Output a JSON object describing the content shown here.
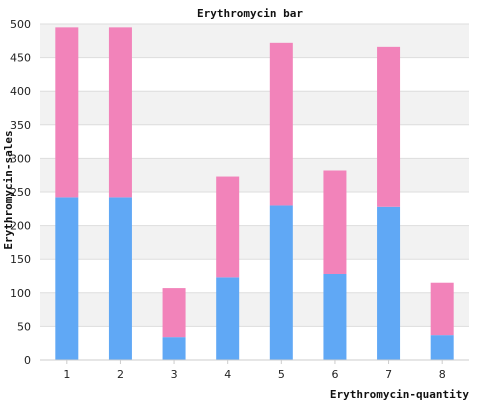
{
  "chart_data": {
    "type": "bar",
    "stacked": true,
    "title": "Erythromycin bar",
    "xlabel": "Erythromycin-quantity",
    "ylabel": "Erythromycin-sales",
    "categories": [
      "1",
      "2",
      "3",
      "4",
      "5",
      "6",
      "7",
      "8"
    ],
    "series": [
      {
        "color": "#60a8f5",
        "values": [
          242,
          242,
          34,
          123,
          230,
          128,
          228,
          37
        ]
      },
      {
        "color": "#f283ba",
        "values": [
          253,
          253,
          73,
          150,
          242,
          154,
          238,
          78
        ]
      }
    ],
    "ylim": [
      0,
      500
    ],
    "yticks": [
      0,
      50,
      100,
      150,
      200,
      250,
      300,
      350,
      400,
      450,
      500
    ],
    "grid": "horizontal-banded",
    "band_color": "#f2f2f2",
    "gridline_color": "#dddddd"
  }
}
